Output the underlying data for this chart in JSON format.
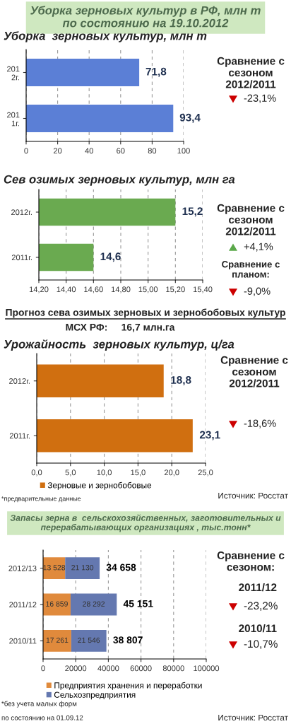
{
  "chart_data": [
    {
      "type": "bar",
      "orientation": "horizontal",
      "title": "Уборка зерновых культур в РФ, млн т\nпо состоянию на 19.10.2012",
      "subtitle": "Уборка  зерновых культур, млн т",
      "categories": [
        "201\n2г.",
        "201\n1г."
      ],
      "values": [
        71.8,
        93.4
      ],
      "value_labels": [
        "71,8",
        "93,4"
      ],
      "color": "#5b7fd6",
      "xlim": [
        0,
        100
      ],
      "xticks": [
        0,
        20,
        40,
        60,
        80,
        100
      ],
      "grid": "x",
      "annotations": [
        "Сравнение с\nсезоном\n2012/2011",
        "-23,1%"
      ]
    },
    {
      "type": "bar",
      "orientation": "horizontal",
      "title": "Сев озимых зерновых культур, млн га",
      "categories": [
        "2012г.",
        "2011г."
      ],
      "values": [
        15.2,
        14.6
      ],
      "value_labels": [
        "15,2",
        "14,6"
      ],
      "color": "#6aaa50",
      "xlim": [
        14.2,
        15.4
      ],
      "xticks": [
        {
          "value": 14.2,
          "label": "14,20"
        },
        {
          "value": 14.4,
          "label": "14,40"
        },
        {
          "value": 14.6,
          "label": "14,60"
        },
        {
          "value": 14.8,
          "label": "14,80"
        },
        {
          "value": 15.0,
          "label": "15,00"
        },
        {
          "value": 15.2,
          "label": "15,20"
        },
        {
          "value": 15.4,
          "label": "15,40"
        }
      ],
      "grid": "x",
      "annotations": [
        "Сравнение с\nсезоном\n2012/2011",
        "+4,1%",
        "Сравнение с\nпланом:",
        "-9,0%",
        "Прогноз сева озимых зерновых и зернобобовых культур",
        "МСХ РФ:     16,7 млн.га"
      ]
    },
    {
      "type": "bar",
      "orientation": "horizontal",
      "title": "Урожайность  зерновых культур, ц/га",
      "categories": [
        "2012г.",
        "2011г."
      ],
      "series": [
        {
          "name": "Зерновые и зернобобовые",
          "color": "#d06f10",
          "values": [
            18.8,
            23.1
          ],
          "value_labels": [
            "18,8",
            "23,1"
          ]
        }
      ],
      "xlim": [
        0,
        25
      ],
      "xticks": [
        {
          "value": 0,
          "label": "0,0"
        },
        {
          "value": 5,
          "label": "5,0"
        },
        {
          "value": 10,
          "label": "10,0"
        },
        {
          "value": 15,
          "label": "15,0"
        },
        {
          "value": 20,
          "label": "20,0"
        },
        {
          "value": 25,
          "label": "25,0"
        }
      ],
      "grid": "x",
      "legend": "bottom",
      "annotations": [
        "Сравнение с\nсезоном\n2012/2011",
        "-18,6%",
        "*предварительные данные",
        "Источник: Росстат"
      ]
    },
    {
      "type": "bar",
      "orientation": "horizontal",
      "stacked": true,
      "title": "Запасы зерна в  сельскохозяйственных, заготовительных и\nперерабатывающих организациях , тыс.тонн*",
      "categories": [
        "2012/13",
        "2011/12",
        "2010/11"
      ],
      "series": [
        {
          "name": "Предприятия хранения и переработки",
          "color": "#e08a3c",
          "values": [
            13528,
            16859,
            17261
          ],
          "value_labels": [
            "13 528",
            "16 859",
            "17 261"
          ]
        },
        {
          "name": "Сельхозпредприятия",
          "color": "#6478b0",
          "values": [
            21130,
            28292,
            21546
          ],
          "value_labels": [
            "21 130",
            "28 292",
            "21 546"
          ]
        }
      ],
      "totals": [
        "34 658",
        "45 151",
        "38 807"
      ],
      "xlim": [
        0,
        100000
      ],
      "xticks": [
        0,
        20000,
        40000,
        60000,
        80000,
        100000
      ],
      "grid": "x",
      "legend": "bottom",
      "annotations": [
        "Сравнение с\nсезоном:",
        "2011/12",
        "-23,2%",
        "2010/11",
        "-10,7%",
        "*без учета малых форм",
        "по состоянию на 01.09.12",
        "Источник: Росстат"
      ]
    }
  ]
}
